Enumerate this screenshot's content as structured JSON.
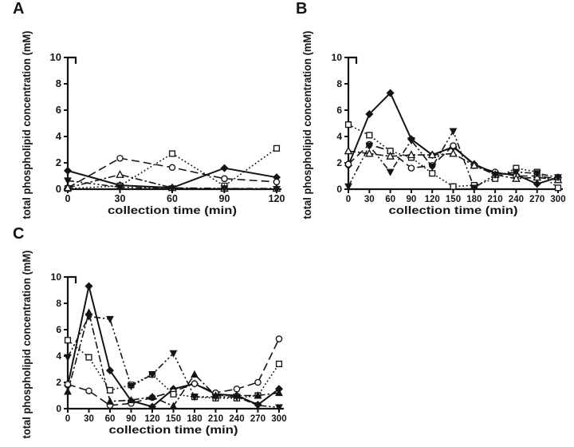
{
  "figure": {
    "background": "#ffffff",
    "ink_color": "#141414",
    "marker_fill_open": "#ffffff",
    "panels": [
      "A",
      "B",
      "C"
    ]
  },
  "chart_data": [
    {
      "panel": "A",
      "type": "line",
      "title": "",
      "xlabel": "collection time (min)",
      "ylabel": "total phospholipid concentration (mM)",
      "xlim": [
        0,
        120
      ],
      "ylim": [
        0,
        10
      ],
      "xticks": [
        0,
        30,
        60,
        90,
        120
      ],
      "yticks": [
        0,
        2,
        4,
        6,
        8,
        10
      ],
      "grid": false,
      "legend": "none",
      "x": [
        0,
        30,
        60,
        90,
        120
      ],
      "series": [
        {
          "name": "diamond-solid",
          "marker": "diamond-filled",
          "line": "solid",
          "values": [
            1.4,
            0.3,
            0.1,
            1.6,
            0.9
          ]
        },
        {
          "name": "circle-dashed",
          "marker": "circle-open",
          "line": "dashed",
          "values": [
            0.1,
            2.35,
            1.65,
            0.8,
            0.55
          ]
        },
        {
          "name": "square-dotted",
          "marker": "square-open",
          "line": "dotted",
          "values": [
            0.05,
            0.25,
            2.7,
            0.25,
            3.1
          ]
        },
        {
          "name": "triangle-dashdot",
          "marker": "triangle-open",
          "line": "dashdot",
          "values": [
            0.1,
            1.1,
            0.1,
            0.05,
            0.05
          ]
        },
        {
          "name": "invtriangle-dashdotdot",
          "marker": "triangle-down-filled",
          "line": "dashdotdot",
          "values": [
            0.65,
            0.15,
            0.05,
            0.05,
            0.0
          ]
        }
      ]
    },
    {
      "panel": "B",
      "type": "line",
      "title": "",
      "xlabel": "collection time (min)",
      "ylabel": "total phospholipid concentration (mM)",
      "xlim": [
        0,
        300
      ],
      "ylim": [
        0,
        10
      ],
      "xticks": [
        0,
        30,
        60,
        90,
        120,
        150,
        180,
        210,
        240,
        270,
        300
      ],
      "yticks": [
        0,
        2,
        4,
        6,
        8,
        10
      ],
      "grid": false,
      "legend": "none",
      "x": [
        0,
        30,
        60,
        90,
        120,
        150,
        180,
        210,
        240,
        270,
        300
      ],
      "series": [
        {
          "name": "diamond-solid",
          "marker": "diamond-filled",
          "line": "solid",
          "values": [
            1.8,
            5.7,
            7.3,
            3.8,
            2.6,
            3.2,
            1.9,
            1.2,
            1.1,
            0.4,
            0.9
          ]
        },
        {
          "name": "circle-dashed",
          "marker": "circle-open",
          "line": "dashed",
          "values": [
            1.9,
            3.4,
            2.9,
            1.6,
            1.8,
            3.3,
            1.8,
            1.3,
            1.0,
            1.0,
            0.8
          ]
        },
        {
          "name": "square-dotted",
          "marker": "square-open",
          "line": "dotted",
          "values": [
            4.9,
            4.1,
            2.9,
            2.4,
            1.2,
            0.2,
            0.3,
            0.8,
            1.6,
            1.3,
            0.1
          ]
        },
        {
          "name": "triangle-dashdot",
          "marker": "triangle-open",
          "line": "dashdot",
          "values": [
            2.9,
            2.7,
            2.5,
            2.6,
            2.6,
            2.7,
            1.8,
            1.1,
            0.8,
            0.9,
            0.7
          ]
        },
        {
          "name": "invtriangle-dashdotdot",
          "marker": "triangle-down-filled",
          "line": "dashdotdot",
          "values": [
            0.2,
            3.3,
            1.3,
            3.7,
            1.7,
            4.4,
            0.1,
            1.1,
            1.3,
            1.2,
            0.9
          ]
        }
      ]
    },
    {
      "panel": "C",
      "type": "line",
      "title": "",
      "xlabel": "collection time (min)",
      "ylabel": "total phospholipid concentration (mM)",
      "xlim": [
        0,
        300
      ],
      "ylim": [
        0,
        10
      ],
      "xticks": [
        0,
        30,
        60,
        90,
        120,
        150,
        180,
        210,
        240,
        270,
        300
      ],
      "yticks": [
        0,
        2,
        4,
        6,
        8,
        10
      ],
      "grid": false,
      "legend": "none",
      "x": [
        0,
        30,
        60,
        90,
        120,
        150,
        180,
        210,
        240,
        270,
        300
      ],
      "series": [
        {
          "name": "diamond-solid",
          "marker": "diamond-filled",
          "line": "solid",
          "values": [
            1.75,
            9.3,
            2.9,
            0.6,
            0.15,
            1.5,
            1.9,
            1.1,
            1.0,
            0.3,
            1.5
          ]
        },
        {
          "name": "circle-dashed",
          "marker": "circle-open",
          "line": "dashed",
          "values": [
            1.85,
            1.35,
            0.25,
            0.4,
            0.85,
            1.3,
            1.9,
            1.2,
            1.5,
            2.0,
            5.3
          ]
        },
        {
          "name": "square-dotted",
          "marker": "square-open",
          "line": "dotted",
          "values": [
            5.2,
            3.9,
            1.4,
            1.8,
            2.6,
            1.1,
            0.9,
            0.8,
            0.8,
            1.0,
            3.4
          ]
        },
        {
          "name": "triangle-dashdot",
          "marker": "triangle-filled",
          "line": "dashdot",
          "values": [
            1.3,
            7.3,
            0.55,
            0.65,
            0.9,
            0.2,
            2.6,
            1.0,
            1.0,
            1.0,
            1.2
          ]
        },
        {
          "name": "invtriangle-dashdotdot",
          "marker": "triangle-down-filled",
          "line": "dashdotdot",
          "values": [
            3.9,
            7.0,
            6.8,
            1.7,
            2.6,
            4.2,
            0.9,
            0.9,
            0.9,
            0.25,
            0.1
          ]
        }
      ]
    }
  ]
}
